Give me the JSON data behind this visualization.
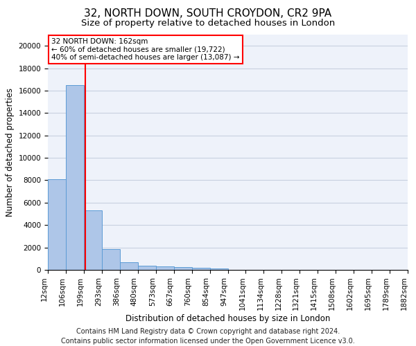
{
  "title": "32, NORTH DOWN, SOUTH CROYDON, CR2 9PA",
  "subtitle": "Size of property relative to detached houses in London",
  "xlabel": "Distribution of detached houses by size in London",
  "ylabel": "Number of detached properties",
  "bar_values": [
    8100,
    16500,
    5300,
    1850,
    700,
    380,
    290,
    220,
    190,
    150,
    0,
    0,
    0,
    0,
    0,
    0,
    0,
    0,
    0,
    0
  ],
  "bar_labels": [
    "12sqm",
    "106sqm",
    "199sqm",
    "293sqm",
    "386sqm",
    "480sqm",
    "573sqm",
    "667sqm",
    "760sqm",
    "854sqm",
    "947sqm",
    "1041sqm",
    "1134sqm",
    "1228sqm",
    "1321sqm",
    "1415sqm",
    "1508sqm",
    "1602sqm",
    "1695sqm",
    "1789sqm",
    "1882sqm"
  ],
  "bar_color": "#aec6e8",
  "bar_edge_color": "#5b9bd5",
  "vline_x": 1.6,
  "vline_color": "red",
  "annotation_title": "32 NORTH DOWN: 162sqm",
  "annotation_line1": "← 60% of detached houses are smaller (19,722)",
  "annotation_line2": "40% of semi-detached houses are larger (13,087) →",
  "annotation_box_facecolor": "white",
  "annotation_box_edgecolor": "red",
  "ylim": [
    0,
    21000
  ],
  "yticks": [
    0,
    2000,
    4000,
    6000,
    8000,
    10000,
    12000,
    14000,
    16000,
    18000,
    20000
  ],
  "footer_line1": "Contains HM Land Registry data © Crown copyright and database right 2024.",
  "footer_line2": "Contains public sector information licensed under the Open Government Licence v3.0.",
  "bg_color": "#eef2fa",
  "grid_color": "#c8d0e0",
  "title_fontsize": 11,
  "subtitle_fontsize": 9.5,
  "axis_label_fontsize": 8.5,
  "tick_fontsize": 7.5,
  "annotation_fontsize": 7.5,
  "footer_fontsize": 7
}
